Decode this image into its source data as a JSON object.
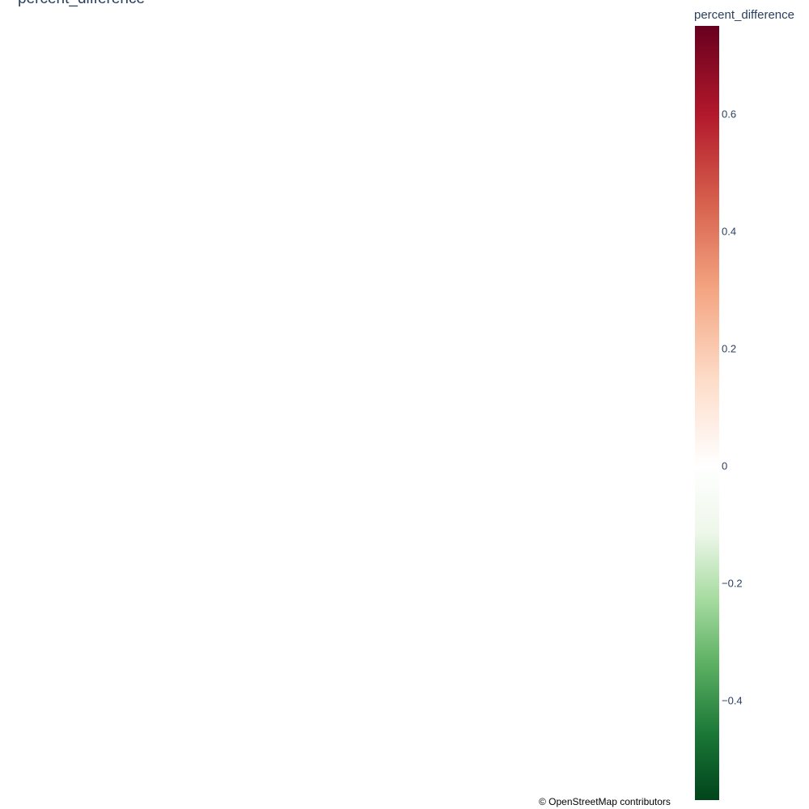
{
  "map": {
    "title": "percent_difference",
    "attribution": "© OpenStreetMap contributors"
  },
  "colorbar": {
    "title": "percent_difference",
    "range": [
      -0.57,
      0.75
    ],
    "tick_values": [
      0.6,
      0.4,
      0.2,
      0,
      -0.2,
      -0.4
    ],
    "tick_labels": [
      "0.6",
      "0.4",
      "0.2",
      "0",
      "−0.2",
      "−0.4"
    ],
    "colorscale_name": "RdBu-like (green to white to red)",
    "colors": [
      "#00441b",
      "#1b7837",
      "#5aae61",
      "#a6dba0",
      "#eef7ea",
      "#ffffff",
      "#fddbc7",
      "#f4a582",
      "#d6604d",
      "#b2182b",
      "#67001f"
    ]
  }
}
